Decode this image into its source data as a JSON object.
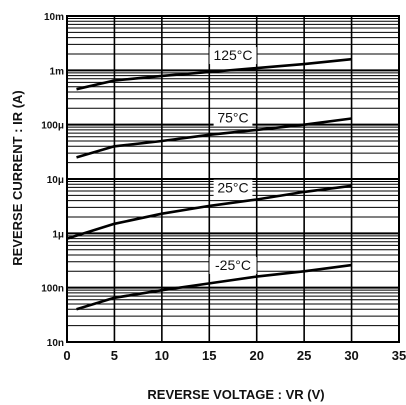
{
  "chart_data": {
    "type": "line",
    "xlabel": "REVERSE  VOLTAGE : VR (V)",
    "ylabel": "REVERSE  CURRENT : IR (A)",
    "x_scale": "linear",
    "y_scale": "log",
    "xlim": [
      0,
      35
    ],
    "ylim": [
      1e-08,
      0.01
    ],
    "x_ticks": [
      0,
      5,
      10,
      15,
      20,
      25,
      30,
      35
    ],
    "x_tick_labels": [
      "0",
      "5",
      "10",
      "15",
      "20",
      "25",
      "30",
      "35"
    ],
    "y_ticks": [
      1e-08,
      1e-07,
      1e-06,
      1e-05,
      0.0001,
      0.001,
      0.01
    ],
    "y_tick_labels": [
      "10n",
      "100n",
      "1μ",
      "10μ",
      "100μ",
      "1m",
      "10m"
    ],
    "grid": true,
    "series": [
      {
        "name": "125°C",
        "x": [
          1,
          5,
          10,
          15,
          20,
          25,
          30
        ],
        "y": [
          0.00045,
          0.00065,
          0.00079,
          0.00093,
          0.0011,
          0.0013,
          0.0016
        ]
      },
      {
        "name": "75°C",
        "x": [
          1,
          5,
          10,
          15,
          20,
          25,
          30
        ],
        "y": [
          2.5e-05,
          4e-05,
          5e-05,
          6.5e-05,
          8e-05,
          0.0001,
          0.00013
        ]
      },
      {
        "name": "25°C",
        "x": [
          0,
          5,
          10,
          15,
          20,
          25,
          30
        ],
        "y": [
          8e-07,
          1.5e-06,
          2.3e-06,
          3.2e-06,
          4.2e-06,
          5.8e-06,
          7.5e-06
        ]
      },
      {
        "name": "-25°C",
        "x": [
          1,
          5,
          10,
          15,
          20,
          25,
          30
        ],
        "y": [
          4e-08,
          6.5e-08,
          9e-08,
          1.2e-07,
          1.6e-07,
          2e-07,
          2.6e-07
        ]
      }
    ]
  }
}
